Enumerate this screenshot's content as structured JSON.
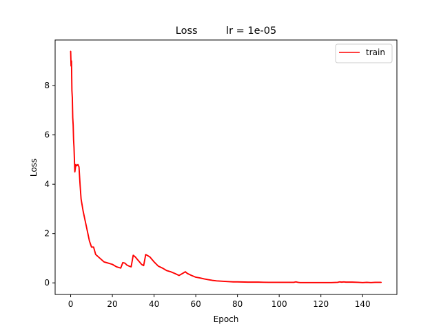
{
  "chart_data": {
    "type": "line",
    "title": "Loss         lr = 1e-05",
    "xlabel": "Epoch",
    "ylabel": "Loss",
    "xlim": [
      -7.45,
      156.45
    ],
    "ylim": [
      -0.47,
      9.85
    ],
    "xticks": [
      0,
      20,
      40,
      60,
      80,
      100,
      120,
      140
    ],
    "yticks": [
      0,
      2,
      4,
      6,
      8
    ],
    "grid": false,
    "legend_position": "top-right",
    "series": [
      {
        "name": "train",
        "color": "#ff0000",
        "x": [
          0,
          0.2,
          0.4,
          0.6,
          0.8,
          1,
          1.2,
          1.4,
          1.6,
          1.8,
          2,
          2.5,
          3,
          3.5,
          4,
          4.5,
          5,
          6,
          7,
          8,
          9,
          10,
          11,
          12,
          14,
          16,
          18,
          20,
          22,
          24,
          25,
          26,
          27,
          28,
          29,
          30,
          31,
          32,
          33,
          34,
          35,
          36,
          37,
          38,
          39,
          40,
          42,
          44,
          46,
          48,
          50,
          52,
          54,
          55,
          56,
          58,
          60,
          62,
          64,
          66,
          68,
          70,
          72,
          74,
          76,
          78,
          80,
          85,
          90,
          95,
          100,
          105,
          107,
          108,
          109,
          110,
          115,
          120,
          125,
          128,
          129,
          130,
          131,
          132,
          135,
          138,
          140,
          142,
          144,
          146,
          149
        ],
        "values": [
          9.4,
          8.8,
          9.0,
          7.8,
          7.5,
          6.7,
          6.4,
          5.8,
          5.5,
          5.0,
          4.5,
          4.8,
          4.75,
          4.8,
          4.7,
          4.0,
          3.4,
          2.9,
          2.5,
          2.1,
          1.7,
          1.45,
          1.45,
          1.15,
          1.0,
          0.85,
          0.8,
          0.75,
          0.65,
          0.6,
          0.82,
          0.8,
          0.72,
          0.68,
          0.65,
          1.12,
          1.05,
          0.95,
          0.85,
          0.75,
          0.7,
          1.15,
          1.1,
          1.05,
          0.95,
          0.85,
          0.68,
          0.6,
          0.5,
          0.45,
          0.38,
          0.3,
          0.4,
          0.45,
          0.38,
          0.3,
          0.23,
          0.2,
          0.16,
          0.13,
          0.1,
          0.08,
          0.07,
          0.06,
          0.05,
          0.04,
          0.04,
          0.03,
          0.03,
          0.02,
          0.02,
          0.02,
          0.02,
          0.04,
          0.02,
          0.01,
          0.01,
          0.01,
          0.01,
          0.02,
          0.04,
          0.03,
          0.04,
          0.03,
          0.03,
          0.02,
          0.01,
          0.02,
          0.01,
          0.02,
          0.02
        ]
      }
    ]
  }
}
